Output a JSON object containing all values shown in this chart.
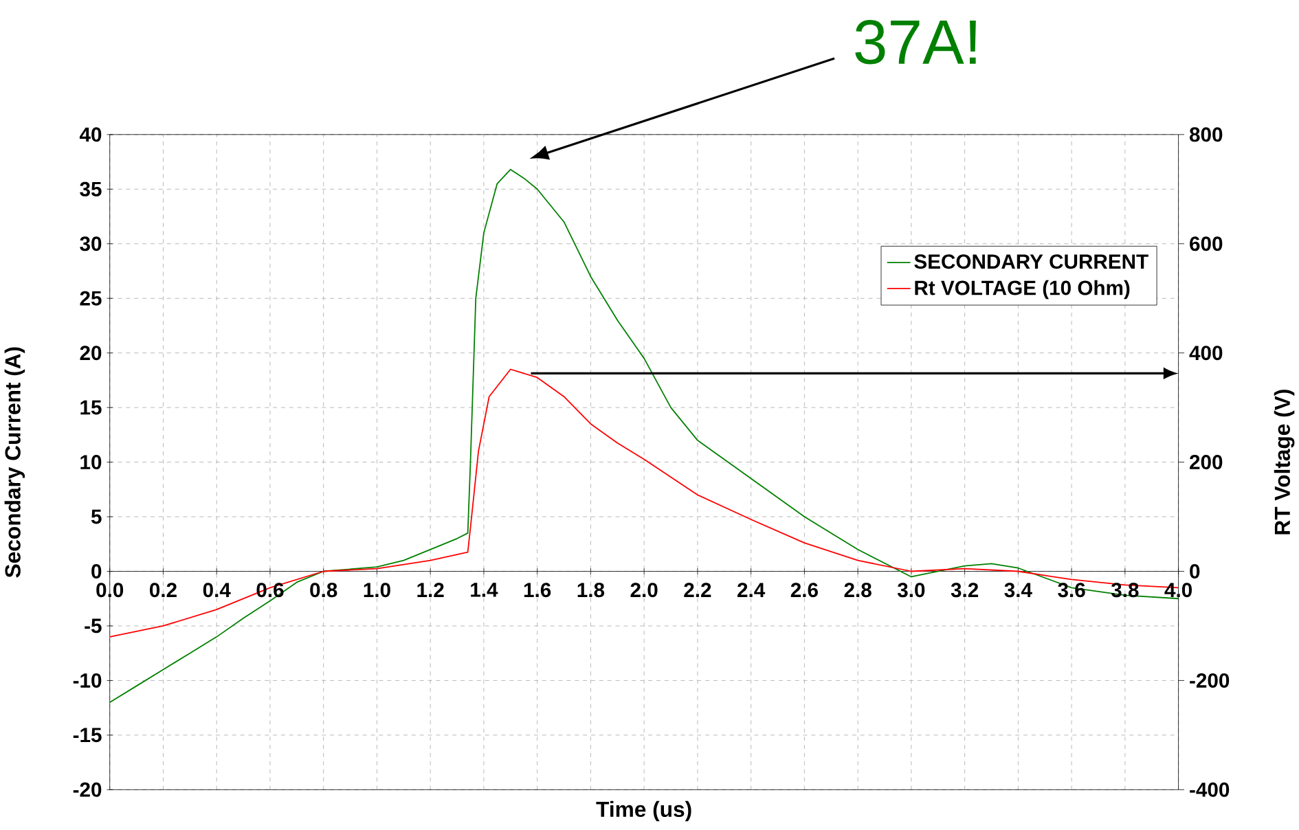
{
  "chart_data": {
    "type": "line",
    "xlabel": "Time (us)",
    "ylabel": "Secondary Current (A)",
    "y2label": "RT Voltage (V)",
    "xlim": [
      0,
      4
    ],
    "xticks": [
      {
        "value": 0,
        "label": "0.0"
      },
      {
        "value": 0.2,
        "label": "0.2"
      },
      {
        "value": 0.4,
        "label": "0.4"
      },
      {
        "value": 0.6,
        "label": "0.6"
      },
      {
        "value": 0.8,
        "label": "0.8"
      },
      {
        "value": 1,
        "label": "1.0"
      },
      {
        "value": 1.2,
        "label": "1.2"
      },
      {
        "value": 1.4,
        "label": "1.4"
      },
      {
        "value": 1.6,
        "label": "1.6"
      },
      {
        "value": 1.8,
        "label": "1.8"
      },
      {
        "value": 2,
        "label": "2.0"
      },
      {
        "value": 2.2,
        "label": "2.2"
      },
      {
        "value": 2.4,
        "label": "2.4"
      },
      {
        "value": 2.6,
        "label": "2.6"
      },
      {
        "value": 2.8,
        "label": "2.8"
      },
      {
        "value": 3,
        "label": "3.0"
      },
      {
        "value": 3.2,
        "label": "3.2"
      },
      {
        "value": 3.4,
        "label": "3.4"
      },
      {
        "value": 3.6,
        "label": "3.6"
      },
      {
        "value": 3.8,
        "label": "3.8"
      },
      {
        "value": 4,
        "label": "4.0"
      }
    ],
    "ylim": [
      -20,
      40
    ],
    "yticks": [
      -20,
      -15,
      -10,
      -5,
      0,
      5,
      10,
      15,
      20,
      25,
      30,
      35,
      40
    ],
    "y2lim": [
      -400,
      800
    ],
    "y2ticks": [
      -400,
      -200,
      0,
      200,
      400,
      600,
      800
    ],
    "grid": true,
    "legend": "top right",
    "line_style": "solid",
    "series": [
      {
        "name": "SECONDARY CURRENT",
        "color": "#008000",
        "x": [
          0,
          0.1,
          0.2,
          0.3,
          0.4,
          0.5,
          0.6,
          0.7,
          0.8,
          0.9,
          1.0,
          1.1,
          1.2,
          1.3,
          1.34,
          1.35,
          1.37,
          1.4,
          1.45,
          1.5,
          1.55,
          1.6,
          1.7,
          1.8,
          1.9,
          2.0,
          2.1,
          2.2,
          2.4,
          2.6,
          2.8,
          3.0,
          3.2,
          3.3,
          3.4,
          3.6,
          3.8,
          4.0
        ],
        "values": [
          -12,
          -10.5,
          -9,
          -7.5,
          -6,
          -4.3,
          -2.7,
          -1,
          0,
          0.2,
          0.4,
          1,
          2,
          3,
          3.5,
          10,
          25,
          31,
          35.5,
          36.8,
          36,
          35,
          32,
          27,
          23,
          19.5,
          15,
          12,
          8.5,
          5,
          2,
          -0.5,
          0.5,
          0.7,
          0.3,
          -1.5,
          -2.2,
          -2.5
        ]
      },
      {
        "name": "Rt VOLTAGE (10 Ohm)",
        "color": "#ff0000",
        "axis": "y2",
        "x": [
          0,
          0.2,
          0.4,
          0.6,
          0.8,
          1.0,
          1.2,
          1.34,
          1.35,
          1.38,
          1.42,
          1.5,
          1.6,
          1.7,
          1.8,
          1.9,
          2.0,
          2.2,
          2.4,
          2.6,
          2.8,
          3.0,
          3.2,
          3.4,
          3.6,
          3.8,
          4.0
        ],
        "values": [
          -120,
          -100,
          -70,
          -30,
          0,
          5,
          20,
          35,
          80,
          220,
          320,
          370,
          355,
          320,
          270,
          235,
          205,
          140,
          95,
          52,
          20,
          0,
          5,
          0,
          -15,
          -25,
          -30
        ]
      }
    ],
    "annotations": [
      "37A!"
    ]
  }
}
